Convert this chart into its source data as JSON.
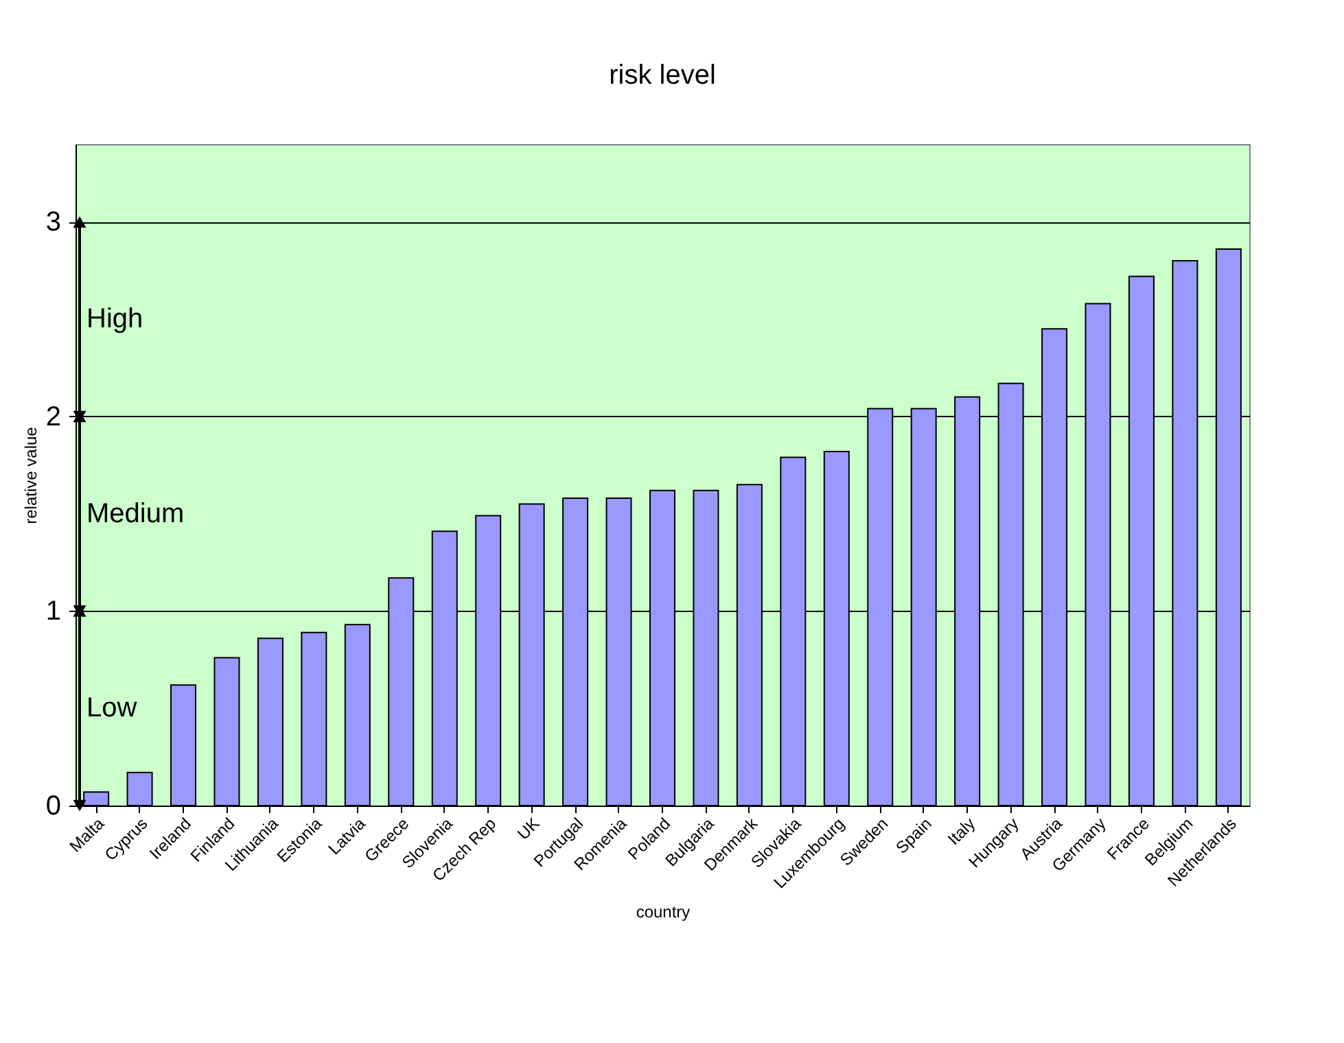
{
  "chart_data": {
    "type": "bar",
    "title": "risk level",
    "xlabel": "country",
    "ylabel": "relative value",
    "categories": [
      "Malta",
      "Cyprus",
      "Ireland",
      "Finland",
      "Lithuania",
      "Estonia",
      "Latvia",
      "Greece",
      "Slovenia",
      "Czech Rep",
      "UK",
      "Portugal",
      "Romenia",
      "Poland",
      "Bulgaria",
      "Denmark",
      "Slovakia",
      "Luxembourg",
      "Sweden",
      "Spain",
      "Italy",
      "Hungary",
      "Austria",
      "Germany",
      "France",
      "Belgium",
      "Netherlands"
    ],
    "values": [
      0.07,
      0.17,
      0.62,
      0.76,
      0.86,
      0.89,
      0.93,
      1.17,
      1.41,
      1.49,
      1.55,
      1.58,
      1.58,
      1.62,
      1.62,
      1.65,
      1.79,
      1.82,
      2.04,
      2.04,
      2.1,
      2.17,
      2.45,
      2.58,
      2.72,
      2.8,
      2.86
    ],
    "color": "#9999ff",
    "ylim": [
      0,
      3.4
    ],
    "yticks": [
      0,
      1,
      2,
      3
    ],
    "grid": "y",
    "annotations": [
      "Low",
      "Medium",
      "High"
    ]
  }
}
